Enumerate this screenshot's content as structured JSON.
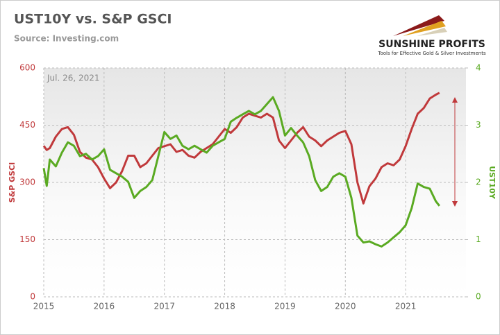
{
  "chart_data": {
    "type": "line",
    "title": "UST10Y vs. S&P GSCI",
    "subtitle": "Source: Investing.com",
    "annotation": "Jul. 26, 2021",
    "brand": "SUNSHINE PROFITS",
    "tagline": "Tools for Effective Gold & Silver Investments",
    "y_label": "S&P GSCI",
    "y2_label": "UST10Y",
    "grid": true,
    "xlim": [
      2015,
      2022
    ],
    "xticks": [
      2015,
      2016,
      2017,
      2018,
      2019,
      2020,
      2021
    ],
    "ylim": [
      0,
      600
    ],
    "yticks": [
      0,
      150,
      300,
      450,
      600
    ],
    "y2lim": [
      0,
      4
    ],
    "y2ticks": [
      0,
      1,
      2,
      3,
      4
    ],
    "x": [
      2015.0,
      2015.05,
      2015.1,
      2015.2,
      2015.3,
      2015.4,
      2015.5,
      2015.6,
      2015.7,
      2015.8,
      2015.9,
      2016.0,
      2016.1,
      2016.2,
      2016.3,
      2016.4,
      2016.5,
      2016.6,
      2016.7,
      2016.8,
      2016.9,
      2017.0,
      2017.1,
      2017.2,
      2017.3,
      2017.4,
      2017.5,
      2017.6,
      2017.7,
      2017.8,
      2017.9,
      2018.0,
      2018.1,
      2018.2,
      2018.3,
      2018.4,
      2018.5,
      2018.6,
      2018.7,
      2018.8,
      2018.9,
      2019.0,
      2019.1,
      2019.2,
      2019.3,
      2019.4,
      2019.5,
      2019.6,
      2019.7,
      2019.8,
      2019.9,
      2020.0,
      2020.1,
      2020.2,
      2020.3,
      2020.4,
      2020.5,
      2020.6,
      2020.7,
      2020.8,
      2020.9,
      2021.0,
      2021.1,
      2021.2,
      2021.3,
      2021.4,
      2021.5,
      2021.56
    ],
    "series": [
      {
        "name": "S&P GSCI",
        "color": "#c0393b",
        "values": [
          396,
          385,
          390,
          420,
          440,
          445,
          425,
          380,
          365,
          360,
          340,
          310,
          285,
          300,
          330,
          370,
          370,
          340,
          350,
          370,
          390,
          395,
          400,
          380,
          385,
          370,
          365,
          380,
          390,
          400,
          420,
          440,
          430,
          445,
          470,
          480,
          475,
          470,
          480,
          470,
          410,
          390,
          410,
          430,
          445,
          420,
          410,
          395,
          410,
          420,
          430,
          435,
          400,
          300,
          245,
          290,
          310,
          340,
          350,
          345,
          360,
          395,
          440,
          480,
          495,
          520,
          530,
          535
        ]
      },
      {
        "name": "UST10Y",
        "color": "#5aaa22",
        "axis": "y2",
        "values": [
          2.25,
          1.94,
          2.4,
          2.28,
          2.52,
          2.7,
          2.64,
          2.46,
          2.5,
          2.4,
          2.46,
          2.58,
          2.22,
          2.16,
          2.1,
          2.01,
          1.73,
          1.85,
          1.92,
          2.04,
          2.46,
          2.88,
          2.76,
          2.82,
          2.64,
          2.58,
          2.64,
          2.58,
          2.52,
          2.64,
          2.7,
          2.76,
          3.06,
          3.13,
          3.19,
          3.25,
          3.19,
          3.25,
          3.37,
          3.49,
          3.25,
          2.82,
          2.95,
          2.82,
          2.7,
          2.46,
          2.04,
          1.85,
          1.92,
          2.1,
          2.16,
          2.1,
          1.73,
          1.07,
          0.95,
          0.97,
          0.92,
          0.88,
          0.95,
          1.04,
          1.13,
          1.25,
          1.55,
          1.98,
          1.92,
          1.89,
          1.67,
          1.59
        ]
      }
    ]
  }
}
